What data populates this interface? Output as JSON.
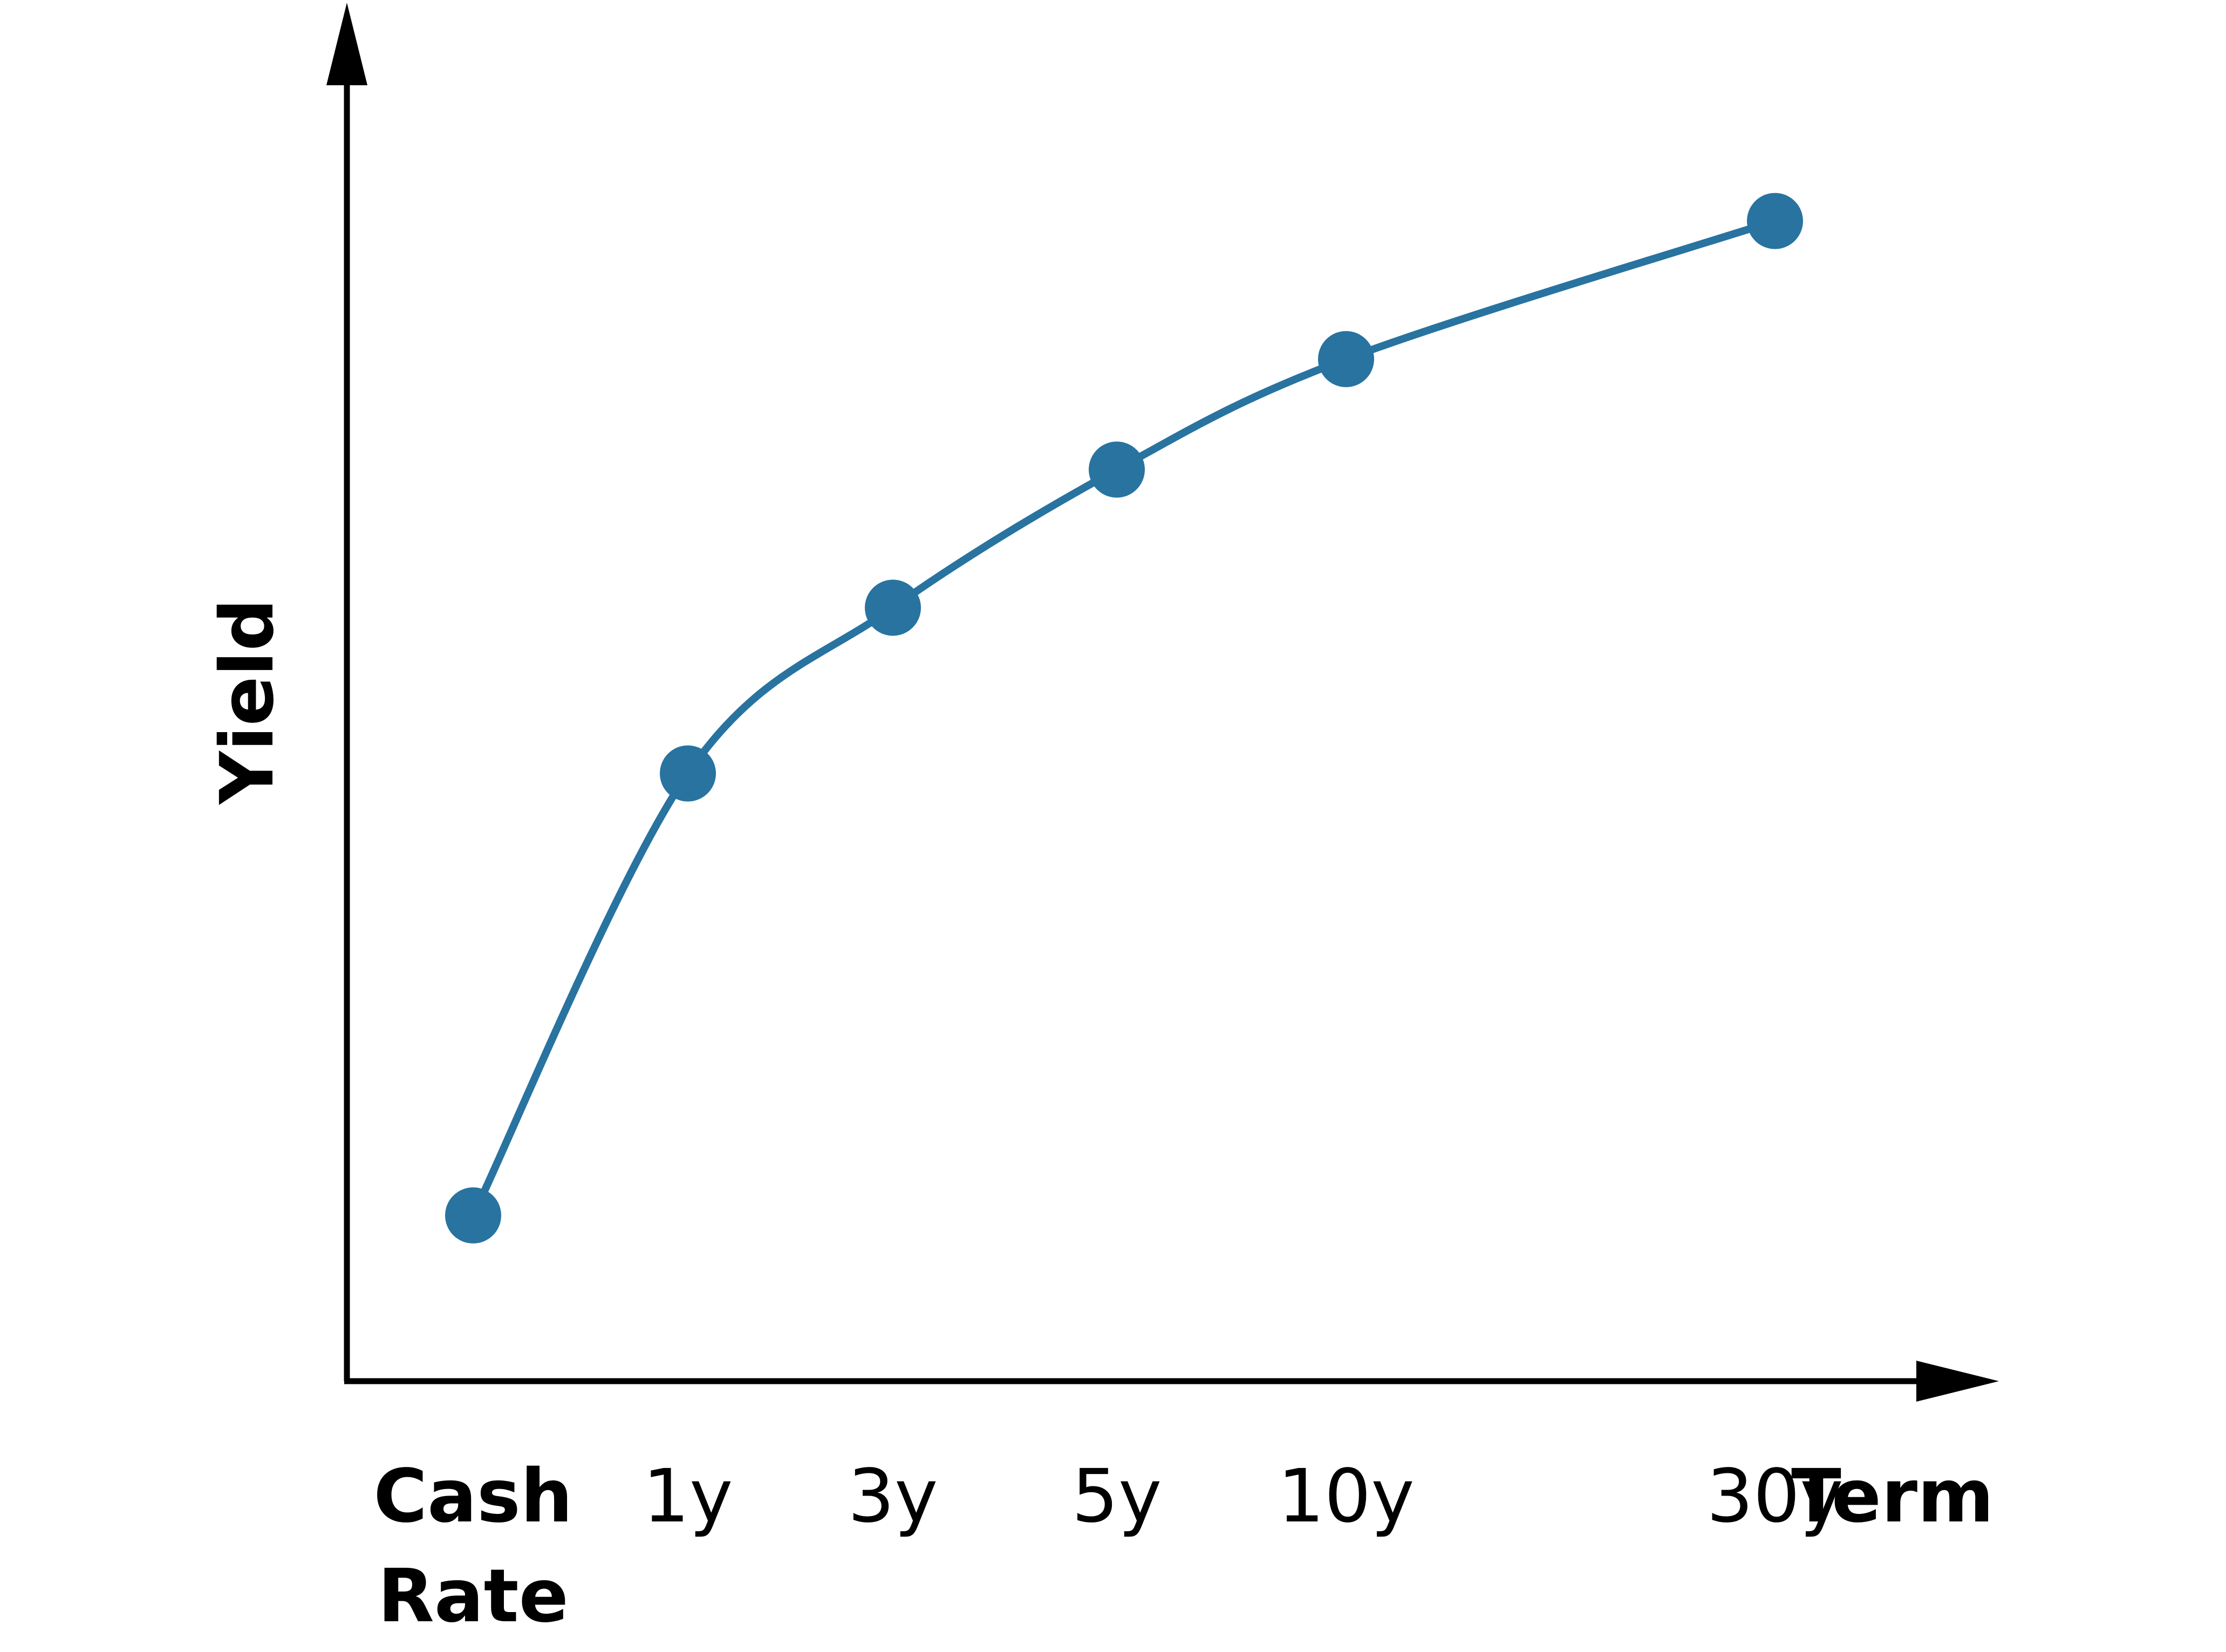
{
  "chart_data": {
    "type": "line",
    "title": "",
    "xlabel": "Term",
    "ylabel": "Yield",
    "categories": [
      "Cash Rate",
      "1y",
      "3y",
      "5y",
      "10y",
      "30y"
    ],
    "category_lines": [
      [
        "Cash",
        "Rate"
      ],
      [
        "1y"
      ],
      [
        "3y"
      ],
      [
        "5y"
      ],
      [
        "10y"
      ],
      [
        "30y"
      ]
    ],
    "series": [
      {
        "values": [
          1.2,
          4.4,
          5.6,
          6.6,
          7.4,
          8.4
        ]
      }
    ],
    "ylim": [
      0,
      10
    ],
    "grid": false,
    "legend": "none",
    "color": "#2873a0"
  }
}
